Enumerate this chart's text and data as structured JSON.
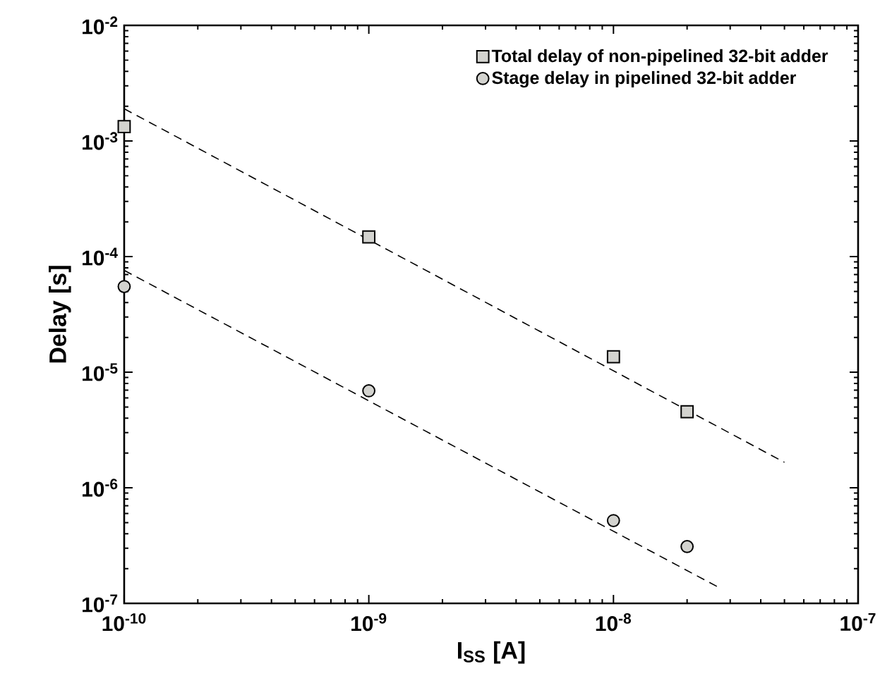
{
  "chart_data": {
    "type": "scatter",
    "xlabel": "I$_{SS}$ [A]",
    "ylabel": "Delay [s]",
    "log": "xy",
    "xlim": [
      1e-10,
      1e-07
    ],
    "ylim": [
      1e-07,
      0.01
    ],
    "xticks": [
      {
        "value": 1e-10,
        "label": "10$^{-10}$"
      },
      {
        "value": 1e-09,
        "label": "10$^{-9}$"
      },
      {
        "value": 1e-08,
        "label": "10$^{-8}$"
      },
      {
        "value": 1e-07,
        "label": "10$^{-7}$"
      }
    ],
    "yticks": [
      {
        "value": 1e-07,
        "label": "10$^{-7}$"
      },
      {
        "value": 1e-06,
        "label": "10$^{-6}$"
      },
      {
        "value": 1e-05,
        "label": "10$^{-5}$"
      },
      {
        "value": 0.0001,
        "label": "10$^{-4}$"
      },
      {
        "value": 0.001,
        "label": "10$^{-3}$"
      },
      {
        "value": 0.01,
        "label": "10$^{-2}$"
      }
    ],
    "legend": "top right",
    "series": [
      {
        "name": "Total delay of non-pipelined 32-bit adder",
        "marker": "square",
        "color": "#d3d3cf",
        "x": [
          1e-10,
          1e-09,
          1e-08,
          2e-08
        ],
        "values": [
          0.00133,
          0.000148,
          1.36e-05,
          4.55e-06
        ]
      },
      {
        "name": "Stage delay in pipelined 32-bit adder",
        "marker": "circle",
        "color": "#d3d3cf",
        "x": [
          1e-10,
          1e-09,
          1e-08,
          2e-08
        ],
        "values": [
          5.5e-05,
          6.9e-06,
          5.2e-07,
          3.1e-07
        ]
      },
      {
        "type": "line",
        "line_style": "dashed",
        "marker": "none",
        "color": "#000000",
        "x": [
          1e-10,
          5e-08
        ],
        "values": [
          0.0019,
          1.66e-06
        ]
      },
      {
        "type": "line",
        "line_style": "dashed",
        "marker": "none",
        "color": "#000000",
        "x": [
          1e-10,
          2.65e-08
        ],
        "values": [
          7.6e-05,
          1.4e-07
        ]
      }
    ]
  }
}
